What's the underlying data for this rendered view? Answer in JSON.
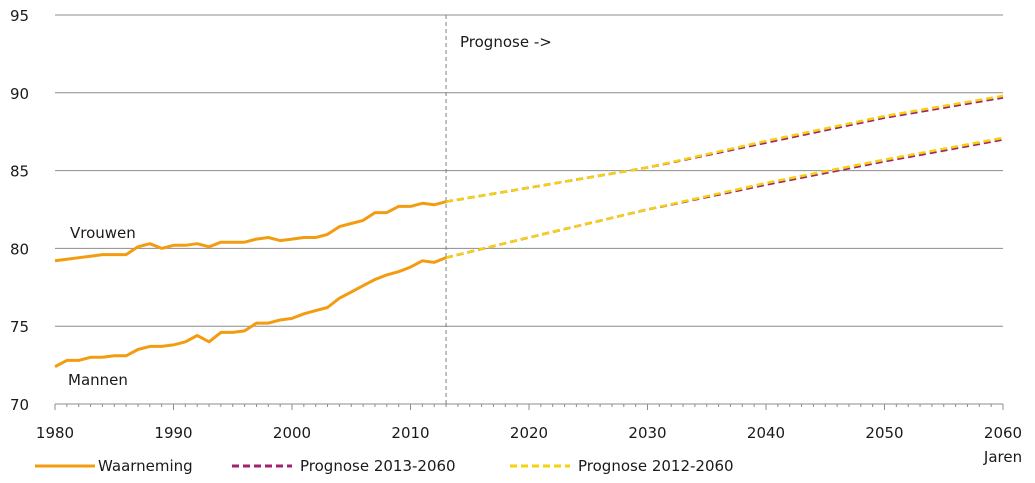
{
  "chart_data": {
    "type": "line",
    "ylim": [
      70,
      95
    ],
    "yticks": [
      70,
      75,
      80,
      85,
      90,
      95
    ],
    "xlim": [
      1980,
      2060
    ],
    "xticks": [
      1980,
      1990,
      2000,
      2010,
      2020,
      2030,
      2040,
      2050,
      2060
    ],
    "xlabel": "Jaren",
    "grid": true,
    "legend_position": "bottom",
    "annotations": {
      "prognose_label": "Prognose ->",
      "prognose_year": 2013,
      "vrouwen_label": "Vrouwen",
      "mannen_label": "Mannen"
    },
    "colors": {
      "waarneming": "#f39c12",
      "prognose_2013": "#a3226e",
      "prognose_2012": "#f5d20f"
    },
    "series": [
      {
        "name": "Waarneming",
        "group": "Vrouwen",
        "style": "solid",
        "x": [
          1980,
          1981,
          1982,
          1983,
          1984,
          1985,
          1986,
          1987,
          1988,
          1989,
          1990,
          1991,
          1992,
          1993,
          1994,
          1995,
          1996,
          1997,
          1998,
          1999,
          2000,
          2001,
          2002,
          2003,
          2004,
          2005,
          2006,
          2007,
          2008,
          2009,
          2010,
          2011,
          2012,
          2013
        ],
        "y": [
          79.2,
          79.3,
          79.4,
          79.5,
          79.6,
          79.6,
          79.6,
          80.1,
          80.3,
          80.0,
          80.2,
          80.2,
          80.3,
          80.1,
          80.4,
          80.4,
          80.4,
          80.6,
          80.7,
          80.5,
          80.6,
          80.7,
          80.7,
          80.9,
          81.4,
          81.6,
          81.8,
          82.3,
          82.3,
          82.7,
          82.7,
          82.9,
          82.8,
          83.0
        ]
      },
      {
        "name": "Waarneming",
        "group": "Mannen",
        "style": "solid",
        "x": [
          1980,
          1981,
          1982,
          1983,
          1984,
          1985,
          1986,
          1987,
          1988,
          1989,
          1990,
          1991,
          1992,
          1993,
          1994,
          1995,
          1996,
          1997,
          1998,
          1999,
          2000,
          2001,
          2002,
          2003,
          2004,
          2005,
          2006,
          2007,
          2008,
          2009,
          2010,
          2011,
          2012,
          2013
        ],
        "y": [
          72.4,
          72.8,
          72.8,
          73.0,
          73.0,
          73.1,
          73.1,
          73.5,
          73.7,
          73.7,
          73.8,
          74.0,
          74.4,
          74.0,
          74.6,
          74.6,
          74.7,
          75.2,
          75.2,
          75.4,
          75.5,
          75.8,
          76.0,
          76.2,
          76.8,
          77.2,
          77.6,
          78.0,
          78.3,
          78.5,
          78.8,
          79.2,
          79.1,
          79.4
        ]
      },
      {
        "name": "Prognose 2013-2060",
        "group": "Vrouwen",
        "style": "dashed",
        "x": [
          2013,
          2020,
          2030,
          2040,
          2050,
          2060
        ],
        "y": [
          83.0,
          83.9,
          85.2,
          86.8,
          88.4,
          89.7
        ]
      },
      {
        "name": "Prognose 2013-2060",
        "group": "Mannen",
        "style": "dashed",
        "x": [
          2013,
          2020,
          2030,
          2040,
          2050,
          2060
        ],
        "y": [
          79.4,
          80.7,
          82.5,
          84.1,
          85.6,
          87.0
        ]
      },
      {
        "name": "Prognose 2012-2060",
        "group": "Vrouwen",
        "style": "dashed",
        "x": [
          2013,
          2020,
          2030,
          2040,
          2050,
          2060
        ],
        "y": [
          83.0,
          83.9,
          85.2,
          86.9,
          88.5,
          89.8
        ]
      },
      {
        "name": "Prognose 2012-2060",
        "group": "Mannen",
        "style": "dashed",
        "x": [
          2013,
          2020,
          2030,
          2040,
          2050,
          2060
        ],
        "y": [
          79.4,
          80.7,
          82.5,
          84.2,
          85.7,
          87.1
        ]
      }
    ],
    "legend": [
      {
        "label": "Waarneming",
        "color_key": "waarneming",
        "style": "solid"
      },
      {
        "label": "Prognose 2013-2060",
        "color_key": "prognose_2013",
        "style": "dashed"
      },
      {
        "label": "Prognose 2012-2060",
        "color_key": "prognose_2012",
        "style": "dashed"
      }
    ]
  }
}
